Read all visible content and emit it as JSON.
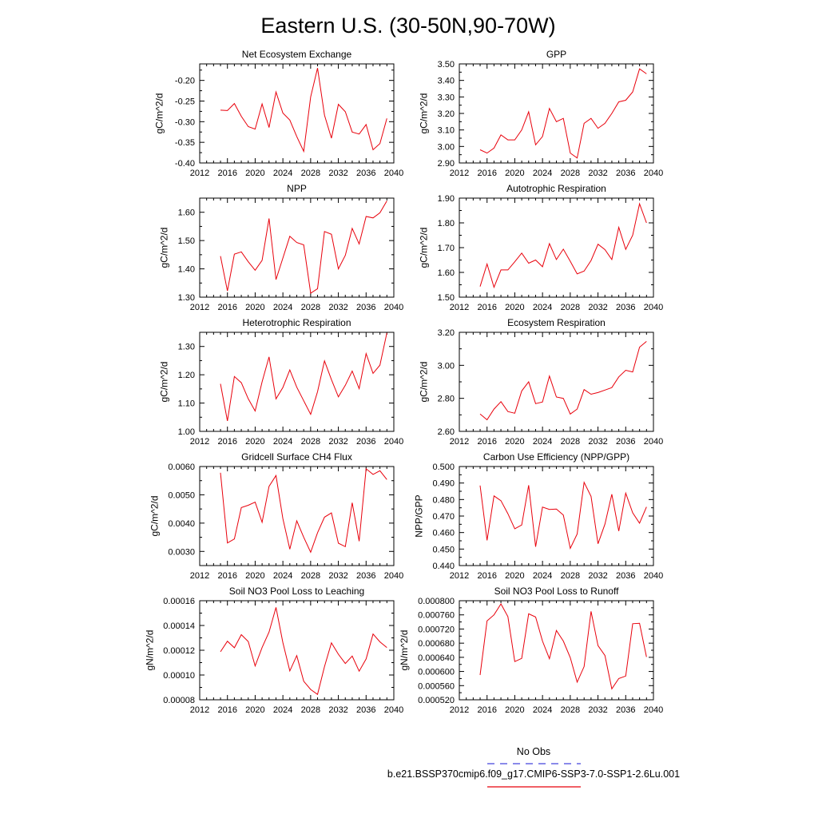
{
  "title": "Eastern U.S. (30-50N,90-70W)",
  "legend": {
    "obs_label": "No Obs",
    "obs_color": "#4444dd",
    "case_label": "b.e21.BSSP370cmip6.f09_g17.CMIP6-SSP3-7.0-SSP1-2.6Lu.001",
    "case_color": "#e8000b"
  },
  "chart_data": [
    {
      "type": "line",
      "title": "Net Ecosystem Exchange",
      "ylabel": "gC/m^2/d",
      "xlim": [
        2012,
        2040
      ],
      "xticks": [
        2012,
        2016,
        2020,
        2024,
        2028,
        2032,
        2036,
        2040
      ],
      "ylim": [
        -0.4,
        -0.16
      ],
      "yticks": [
        -0.4,
        -0.35,
        -0.3,
        -0.25,
        -0.2
      ],
      "ydec": 2,
      "x": [
        2015,
        2016,
        2017,
        2018,
        2019,
        2020,
        2021,
        2022,
        2023,
        2024,
        2025,
        2026,
        2027,
        2028,
        2029,
        2030,
        2031,
        2032,
        2033,
        2034,
        2035,
        2036,
        2037,
        2038,
        2039
      ],
      "series": [
        {
          "values": [
            -0.272,
            -0.273,
            -0.256,
            -0.287,
            -0.312,
            -0.318,
            -0.257,
            -0.314,
            -0.228,
            -0.279,
            -0.296,
            -0.336,
            -0.372,
            -0.24,
            -0.17,
            -0.284,
            -0.34,
            -0.258,
            -0.276,
            -0.325,
            -0.33,
            -0.307,
            -0.368,
            -0.353,
            -0.292
          ]
        }
      ]
    },
    {
      "type": "line",
      "title": "GPP",
      "ylabel": "gC/m^2/d",
      "xlim": [
        2012,
        2040
      ],
      "xticks": [
        2012,
        2016,
        2020,
        2024,
        2028,
        2032,
        2036,
        2040
      ],
      "ylim": [
        2.9,
        3.5
      ],
      "yticks": [
        2.9,
        3.0,
        3.1,
        3.2,
        3.3,
        3.4,
        3.5
      ],
      "ydec": 2,
      "x": [
        2015,
        2016,
        2017,
        2018,
        2019,
        2020,
        2021,
        2022,
        2023,
        2024,
        2025,
        2026,
        2027,
        2028,
        2029,
        2030,
        2031,
        2032,
        2033,
        2034,
        2035,
        2036,
        2037,
        2038,
        2039
      ],
      "series": [
        {
          "values": [
            2.98,
            2.96,
            2.99,
            3.07,
            3.04,
            3.04,
            3.1,
            3.21,
            3.01,
            3.06,
            3.23,
            3.15,
            3.17,
            2.96,
            2.93,
            3.14,
            3.17,
            3.11,
            3.14,
            3.2,
            3.27,
            3.28,
            3.33,
            3.47,
            3.44
          ]
        }
      ]
    },
    {
      "type": "line",
      "title": "NPP",
      "ylabel": "gC/m^2/d",
      "xlim": [
        2012,
        2040
      ],
      "xticks": [
        2012,
        2016,
        2020,
        2024,
        2028,
        2032,
        2036,
        2040
      ],
      "ylim": [
        1.3,
        1.65
      ],
      "yticks": [
        1.3,
        1.4,
        1.5,
        1.6
      ],
      "ydec": 2,
      "x": [
        2015,
        2016,
        2017,
        2018,
        2019,
        2020,
        2021,
        2022,
        2023,
        2024,
        2025,
        2026,
        2027,
        2028,
        2029,
        2030,
        2031,
        2032,
        2033,
        2034,
        2035,
        2036,
        2037,
        2038,
        2039
      ],
      "series": [
        {
          "values": [
            1.445,
            1.322,
            1.452,
            1.46,
            1.425,
            1.395,
            1.43,
            1.578,
            1.362,
            1.438,
            1.515,
            1.493,
            1.485,
            1.314,
            1.33,
            1.532,
            1.522,
            1.4,
            1.448,
            1.543,
            1.488,
            1.585,
            1.58,
            1.598,
            1.64
          ]
        }
      ]
    },
    {
      "type": "line",
      "title": "Autotrophic Respiration",
      "ylabel": "gC/m^2/d",
      "xlim": [
        2012,
        2040
      ],
      "xticks": [
        2012,
        2016,
        2020,
        2024,
        2028,
        2032,
        2036,
        2040
      ],
      "ylim": [
        1.5,
        1.9
      ],
      "yticks": [
        1.5,
        1.6,
        1.7,
        1.8,
        1.9
      ],
      "ydec": 2,
      "x": [
        2015,
        2016,
        2017,
        2018,
        2019,
        2020,
        2021,
        2022,
        2023,
        2024,
        2025,
        2026,
        2027,
        2028,
        2029,
        2030,
        2031,
        2032,
        2033,
        2034,
        2035,
        2036,
        2037,
        2038,
        2039
      ],
      "series": [
        {
          "values": [
            1.543,
            1.634,
            1.54,
            1.61,
            1.61,
            1.643,
            1.678,
            1.637,
            1.65,
            1.623,
            1.716,
            1.652,
            1.694,
            1.645,
            1.594,
            1.605,
            1.648,
            1.714,
            1.692,
            1.652,
            1.782,
            1.693,
            1.75,
            1.877,
            1.8
          ]
        }
      ]
    },
    {
      "type": "line",
      "title": "Heterotrophic Respiration",
      "ylabel": "gC/m^2/d",
      "xlim": [
        2012,
        2040
      ],
      "xticks": [
        2012,
        2016,
        2020,
        2024,
        2028,
        2032,
        2036,
        2040
      ],
      "ylim": [
        1.0,
        1.35
      ],
      "yticks": [
        1.0,
        1.1,
        1.2,
        1.3
      ],
      "ydec": 2,
      "x": [
        2015,
        2016,
        2017,
        2018,
        2019,
        2020,
        2021,
        2022,
        2023,
        2024,
        2025,
        2026,
        2027,
        2028,
        2029,
        2030,
        2031,
        2032,
        2033,
        2034,
        2035,
        2036,
        2037,
        2038,
        2039
      ],
      "series": [
        {
          "values": [
            1.168,
            1.037,
            1.194,
            1.172,
            1.115,
            1.072,
            1.175,
            1.263,
            1.115,
            1.155,
            1.217,
            1.156,
            1.108,
            1.06,
            1.14,
            1.249,
            1.183,
            1.122,
            1.163,
            1.213,
            1.151,
            1.275,
            1.205,
            1.234,
            1.348
          ]
        }
      ]
    },
    {
      "type": "line",
      "title": "Ecosystem Respiration",
      "ylabel": "gC/m^2/d",
      "xlim": [
        2012,
        2040
      ],
      "xticks": [
        2012,
        2016,
        2020,
        2024,
        2028,
        2032,
        2036,
        2040
      ],
      "ylim": [
        2.6,
        3.2
      ],
      "yticks": [
        2.6,
        2.8,
        3.0,
        3.2
      ],
      "ydec": 2,
      "x": [
        2015,
        2016,
        2017,
        2018,
        2019,
        2020,
        2021,
        2022,
        2023,
        2024,
        2025,
        2026,
        2027,
        2028,
        2029,
        2030,
        2031,
        2032,
        2033,
        2034,
        2035,
        2036,
        2037,
        2038,
        2039
      ],
      "series": [
        {
          "values": [
            2.705,
            2.67,
            2.735,
            2.78,
            2.72,
            2.71,
            2.845,
            2.9,
            2.768,
            2.778,
            2.935,
            2.808,
            2.8,
            2.705,
            2.735,
            2.853,
            2.825,
            2.835,
            2.85,
            2.865,
            2.93,
            2.97,
            2.96,
            3.11,
            3.145
          ]
        }
      ]
    },
    {
      "type": "line",
      "title": "Gridcell Surface CH4 Flux",
      "ylabel": "gC/m^2/d",
      "xlim": [
        2012,
        2040
      ],
      "xticks": [
        2012,
        2016,
        2020,
        2024,
        2028,
        2032,
        2036,
        2040
      ],
      "ylim": [
        0.0025,
        0.006
      ],
      "yticks": [
        0.003,
        0.004,
        0.005,
        0.006
      ],
      "ydec": 4,
      "x": [
        2015,
        2016,
        2017,
        2018,
        2019,
        2020,
        2021,
        2022,
        2023,
        2024,
        2025,
        2026,
        2027,
        2028,
        2029,
        2030,
        2031,
        2032,
        2033,
        2034,
        2035,
        2036,
        2037,
        2038,
        2039
      ],
      "series": [
        {
          "values": [
            0.00578,
            0.0033,
            0.00344,
            0.00455,
            0.00463,
            0.00474,
            0.00403,
            0.0053,
            0.00568,
            0.00416,
            0.00308,
            0.00408,
            0.0035,
            0.00297,
            0.00366,
            0.00421,
            0.00436,
            0.00329,
            0.00317,
            0.00472,
            0.00336,
            0.00592,
            0.00572,
            0.00585,
            0.00554
          ]
        }
      ]
    },
    {
      "type": "line",
      "title": "Carbon Use Efficiency (NPP/GPP)",
      "ylabel": "NPP/GPP",
      "xlim": [
        2012,
        2040
      ],
      "xticks": [
        2012,
        2016,
        2020,
        2024,
        2028,
        2032,
        2036,
        2040
      ],
      "ylim": [
        0.44,
        0.5
      ],
      "yticks": [
        0.44,
        0.45,
        0.46,
        0.47,
        0.48,
        0.49,
        0.5
      ],
      "ydec": 3,
      "x": [
        2015,
        2016,
        2017,
        2018,
        2019,
        2020,
        2021,
        2022,
        2023,
        2024,
        2025,
        2026,
        2027,
        2028,
        2029,
        2030,
        2031,
        2032,
        2033,
        2034,
        2035,
        2036,
        2037,
        2038,
        2039
      ],
      "series": [
        {
          "values": [
            0.4885,
            0.4553,
            0.4822,
            0.4793,
            0.4714,
            0.4623,
            0.4646,
            0.4887,
            0.4514,
            0.4754,
            0.474,
            0.4742,
            0.4706,
            0.4504,
            0.4591,
            0.4904,
            0.4819,
            0.4532,
            0.4651,
            0.4832,
            0.4609,
            0.4839,
            0.472,
            0.4657,
            0.4755
          ]
        }
      ]
    },
    {
      "type": "line",
      "title": "Soil NO3 Pool Loss to Leaching",
      "ylabel": "gN/m^2/d",
      "xlim": [
        2012,
        2040
      ],
      "xticks": [
        2012,
        2016,
        2020,
        2024,
        2028,
        2032,
        2036,
        2040
      ],
      "ylim": [
        8e-05,
        0.00016
      ],
      "yticks": [
        8e-05,
        0.0001,
        0.00012,
        0.00014,
        0.00016
      ],
      "ydec": 5,
      "x": [
        2015,
        2016,
        2017,
        2018,
        2019,
        2020,
        2021,
        2022,
        2023,
        2024,
        2025,
        2026,
        2027,
        2028,
        2029,
        2030,
        2031,
        2032,
        2033,
        2034,
        2035,
        2036,
        2037,
        2038,
        2039
      ],
      "series": [
        {
          "values": [
            0.0001188,
            0.0001273,
            0.000122,
            0.0001326,
            0.000127,
            0.0001073,
            0.0001222,
            0.0001347,
            0.0001546,
            0.0001262,
            0.0001033,
            0.0001157,
            9.5e-05,
            8.83e-05,
            8.43e-05,
            0.0001068,
            0.000126,
            0.0001168,
            0.0001093,
            0.0001153,
            0.0001031,
            0.000113,
            0.0001331,
            0.0001268,
            0.0001222
          ]
        }
      ]
    },
    {
      "type": "line",
      "title": "Soil NO3 Pool Loss to Runoff",
      "ylabel": "gN/m^2/d",
      "xlim": [
        2012,
        2040
      ],
      "xticks": [
        2012,
        2016,
        2020,
        2024,
        2028,
        2032,
        2036,
        2040
      ],
      "ylim": [
        0.00052,
        0.0008
      ],
      "yticks": [
        0.00052,
        0.00056,
        0.0006,
        0.00064,
        0.00068,
        0.00072,
        0.00076,
        0.0008
      ],
      "ydec": 6,
      "x": [
        2015,
        2016,
        2017,
        2018,
        2019,
        2020,
        2021,
        2022,
        2023,
        2024,
        2025,
        2026,
        2027,
        2028,
        2029,
        2030,
        2031,
        2032,
        2033,
        2034,
        2035,
        2036,
        2037,
        2038,
        2039
      ],
      "series": [
        {
          "values": [
            0.00059,
            0.000743,
            0.00076,
            0.000791,
            0.000755,
            0.000628,
            0.000637,
            0.000763,
            0.000754,
            0.000686,
            0.000636,
            0.000716,
            0.000686,
            0.000639,
            0.00057,
            0.000614,
            0.00077,
            0.000673,
            0.000645,
            0.000551,
            0.00058,
            0.000587,
            0.000735,
            0.000736,
            0.000641
          ]
        }
      ]
    }
  ]
}
